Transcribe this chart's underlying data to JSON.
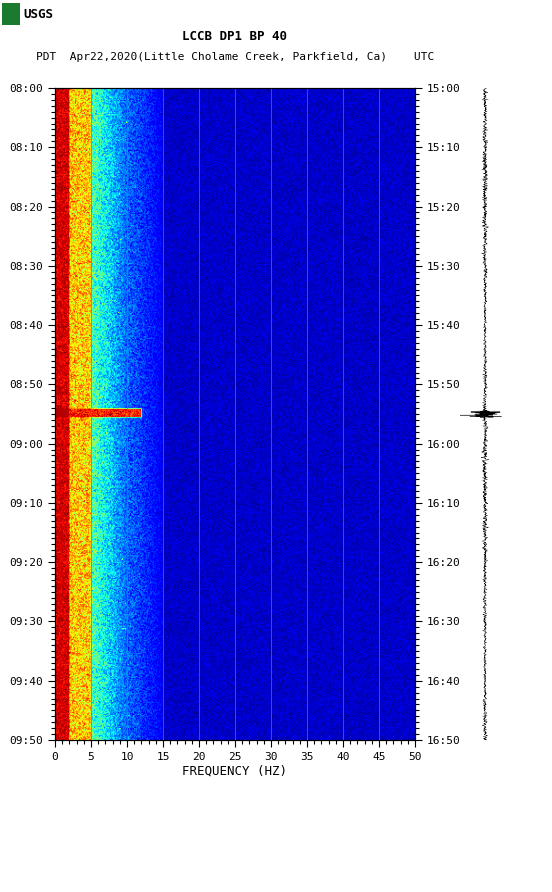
{
  "title_line1": "LCCB DP1 BP 40",
  "title_line2": "PDT  Apr22,2020(Little Cholame Creek, Parkfield, Ca)    UTC",
  "xlabel": "FREQUENCY (HZ)",
  "freq_ticks": [
    0,
    5,
    10,
    15,
    20,
    25,
    30,
    35,
    40,
    45,
    50
  ],
  "time_ticks_left": [
    "08:00",
    "08:10",
    "08:20",
    "08:30",
    "08:40",
    "08:50",
    "09:00",
    "09:10",
    "09:20",
    "09:30",
    "09:40",
    "09:50"
  ],
  "time_ticks_right": [
    "15:00",
    "15:10",
    "15:20",
    "15:30",
    "15:40",
    "15:50",
    "16:00",
    "16:10",
    "16:20",
    "16:30",
    "16:40",
    "16:50"
  ],
  "n_time": 600,
  "n_freq": 500,
  "background_color": "#ffffff",
  "usgs_green": "#1a7a2e",
  "event_row": 295,
  "event_freq_max_idx": 130
}
